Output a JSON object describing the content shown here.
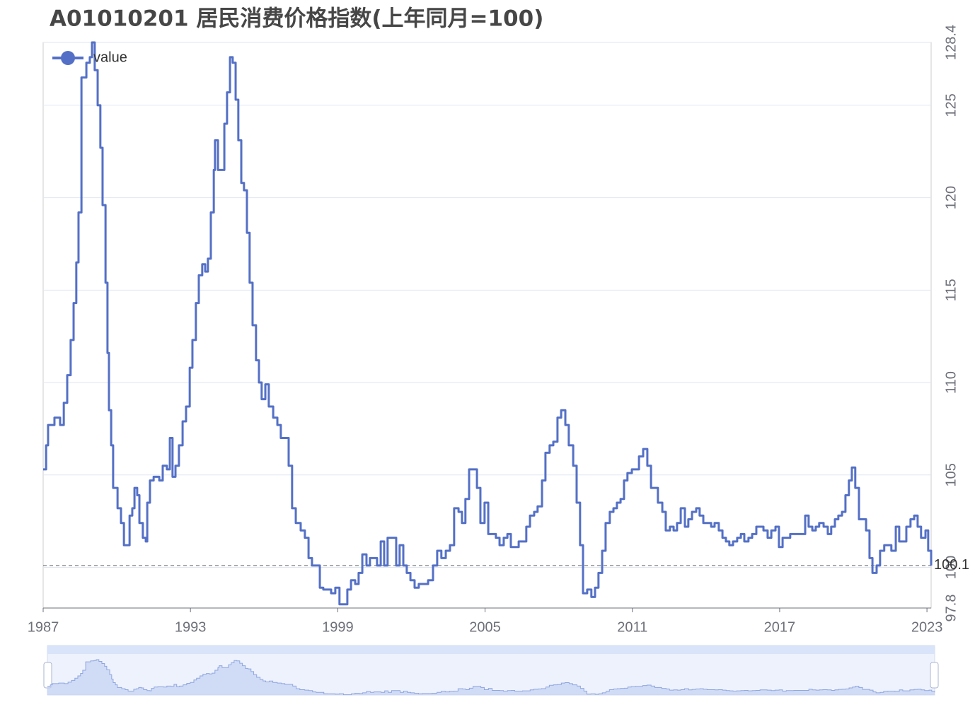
{
  "chart_data": {
    "type": "line",
    "step": true,
    "title": "A01010201 居民消费价格指数(上年同月=100)",
    "series": [
      {
        "name": "value",
        "color": "#5470c6",
        "x": [
          1987.0,
          1987.12,
          1987.2,
          1987.46,
          1987.69,
          1987.84,
          1987.98,
          1988.12,
          1988.24,
          1988.35,
          1988.44,
          1988.56,
          1988.76,
          1988.9,
          1988.99,
          1989.1,
          1989.22,
          1989.33,
          1989.42,
          1989.54,
          1989.62,
          1989.68,
          1989.77,
          1989.85,
          1990.03,
          1990.17,
          1990.29,
          1990.43,
          1990.52,
          1990.63,
          1990.72,
          1990.83,
          1990.92,
          1991.06,
          1991.18,
          1991.24,
          1991.35,
          1991.5,
          1991.73,
          1991.87,
          1992.04,
          1992.16,
          1992.27,
          1992.39,
          1992.53,
          1992.68,
          1992.82,
          1992.97,
          1993.08,
          1993.22,
          1993.34,
          1993.48,
          1993.6,
          1993.71,
          1993.83,
          1993.95,
          1994.0,
          1994.12,
          1994.26,
          1994.38,
          1994.49,
          1994.61,
          1994.72,
          1994.84,
          1994.95,
          1995.07,
          1995.18,
          1995.3,
          1995.41,
          1995.53,
          1995.67,
          1995.79,
          1995.9,
          1996.05,
          1996.19,
          1996.37,
          1996.54,
          1996.68,
          1996.86,
          1997.0,
          1997.14,
          1997.29,
          1997.49,
          1997.66,
          1997.81,
          1997.95,
          1998.1,
          1998.27,
          1998.41,
          1998.59,
          1998.73,
          1998.9,
          1999.07,
          1999.25,
          1999.39,
          1999.54,
          1999.71,
          1999.85,
          2000.0,
          2000.17,
          2000.31,
          2000.6,
          2000.75,
          2000.89,
          2001.03,
          2001.21,
          2001.38,
          2001.52,
          2001.67,
          2001.81,
          2001.96,
          2002.13,
          2002.3,
          2002.68,
          2002.88,
          2003.05,
          2003.22,
          2003.4,
          2003.57,
          2003.74,
          2003.92,
          2004.06,
          2004.2,
          2004.35,
          2004.52,
          2004.67,
          2004.81,
          2004.98,
          2005.13,
          2005.44,
          2005.59,
          2005.76,
          2005.91,
          2006.05,
          2006.37,
          2006.54,
          2006.68,
          2006.83,
          2007.0,
          2007.14,
          2007.32,
          2007.46,
          2007.63,
          2007.78,
          2007.95,
          2008.1,
          2008.27,
          2008.41,
          2008.59,
          2008.73,
          2008.87,
          2008.99,
          2009.16,
          2009.33,
          2009.48,
          2009.62,
          2009.77,
          2009.91,
          2010.08,
          2010.23,
          2010.37,
          2010.52,
          2010.66,
          2010.8,
          2010.98,
          2011.12,
          2011.27,
          2011.44,
          2011.61,
          2011.76,
          2011.9,
          2012.04,
          2012.22,
          2012.36,
          2012.53,
          2012.68,
          2012.82,
          2012.97,
          2013.14,
          2013.28,
          2013.43,
          2013.6,
          2013.74,
          2013.89,
          2014.21,
          2014.35,
          2014.52,
          2014.67,
          2014.81,
          2014.95,
          2015.1,
          2015.27,
          2015.42,
          2015.56,
          2015.73,
          2015.88,
          2016.05,
          2016.34,
          2016.51,
          2016.66,
          2016.83,
          2016.97,
          2017.12,
          2017.43,
          2017.89,
          2018.04,
          2018.18,
          2018.33,
          2018.47,
          2018.61,
          2018.79,
          2018.96,
          2019.1,
          2019.25,
          2019.39,
          2019.54,
          2019.68,
          2019.82,
          2019.94,
          2020.08,
          2020.23,
          2020.52,
          2020.66,
          2020.78,
          2020.95,
          2021.09,
          2021.26,
          2021.55,
          2021.73,
          2021.87,
          2022.02,
          2022.16,
          2022.33,
          2022.48,
          2022.62,
          2022.76,
          2022.94,
          2023.05,
          2023.17
        ],
        "values": [
          105.3,
          106.6,
          107.7,
          108.1,
          107.7,
          108.9,
          110.4,
          112.3,
          114.3,
          116.5,
          119.2,
          126.5,
          127.3,
          127.6,
          128.4,
          126.9,
          125.0,
          122.7,
          119.6,
          115.4,
          111.6,
          108.5,
          106.6,
          104.3,
          103.2,
          102.4,
          101.2,
          101.2,
          102.8,
          103.2,
          104.3,
          103.9,
          102.4,
          101.6,
          101.4,
          103.5,
          104.7,
          104.9,
          104.7,
          105.5,
          105.3,
          107.0,
          104.9,
          105.5,
          106.6,
          107.9,
          108.7,
          110.8,
          112.3,
          114.3,
          115.8,
          116.4,
          116.0,
          116.7,
          119.2,
          121.5,
          123.1,
          121.5,
          121.5,
          124.0,
          125.7,
          127.6,
          127.3,
          125.3,
          123.1,
          120.8,
          120.4,
          118.1,
          115.4,
          113.1,
          111.2,
          110.0,
          109.1,
          109.9,
          108.7,
          108.1,
          107.7,
          107.0,
          107.0,
          105.5,
          103.2,
          102.4,
          102.0,
          101.6,
          100.5,
          100.1,
          100.1,
          98.9,
          98.8,
          98.8,
          98.6,
          98.9,
          98.0,
          98.0,
          98.8,
          99.3,
          99.1,
          99.7,
          100.7,
          100.1,
          100.5,
          100.1,
          101.4,
          100.1,
          101.6,
          101.6,
          100.1,
          101.2,
          100.1,
          99.7,
          99.3,
          98.9,
          99.1,
          99.3,
          100.1,
          100.9,
          100.5,
          100.9,
          101.2,
          103.2,
          103.0,
          102.4,
          103.7,
          105.3,
          105.3,
          104.3,
          102.4,
          103.5,
          101.8,
          101.6,
          101.2,
          101.6,
          101.8,
          101.1,
          101.4,
          101.4,
          102.2,
          102.8,
          103.0,
          103.3,
          104.7,
          106.2,
          106.6,
          106.8,
          108.1,
          108.5,
          107.7,
          106.6,
          105.5,
          103.5,
          101.2,
          98.6,
          98.8,
          98.4,
          98.9,
          99.7,
          100.9,
          102.4,
          103.0,
          103.2,
          103.5,
          103.7,
          104.7,
          105.1,
          105.3,
          105.3,
          106.0,
          106.4,
          105.5,
          104.3,
          104.3,
          103.5,
          103.0,
          102.0,
          102.2,
          102.0,
          102.4,
          103.2,
          102.2,
          102.6,
          103.0,
          103.2,
          102.8,
          102.4,
          102.2,
          102.4,
          102.0,
          101.6,
          101.4,
          101.2,
          101.4,
          101.6,
          101.8,
          101.4,
          101.6,
          101.8,
          102.2,
          102.0,
          101.6,
          102.0,
          102.2,
          101.1,
          101.6,
          101.8,
          101.8,
          102.8,
          102.2,
          102.0,
          102.2,
          102.4,
          102.2,
          101.8,
          102.2,
          102.6,
          102.8,
          103.0,
          103.9,
          104.7,
          105.4,
          104.3,
          102.6,
          102.0,
          100.5,
          99.7,
          100.1,
          100.9,
          101.2,
          100.9,
          102.2,
          101.4,
          101.4,
          102.2,
          102.6,
          102.8,
          102.2,
          101.6,
          102.0,
          100.9,
          100.1
        ]
      }
    ],
    "xlim": [
      1987,
      2023.17
    ],
    "xticks": [
      1987,
      1993,
      1999,
      2005,
      2011,
      2017,
      2023
    ],
    "ylim": [
      97.8,
      128.4
    ],
    "yticks": [
      97.8,
      100,
      105,
      110,
      115,
      120,
      125,
      128.4
    ],
    "mark_line": {
      "value": 100.1,
      "label": "100.1"
    },
    "grid": true,
    "legend": "top-left"
  }
}
